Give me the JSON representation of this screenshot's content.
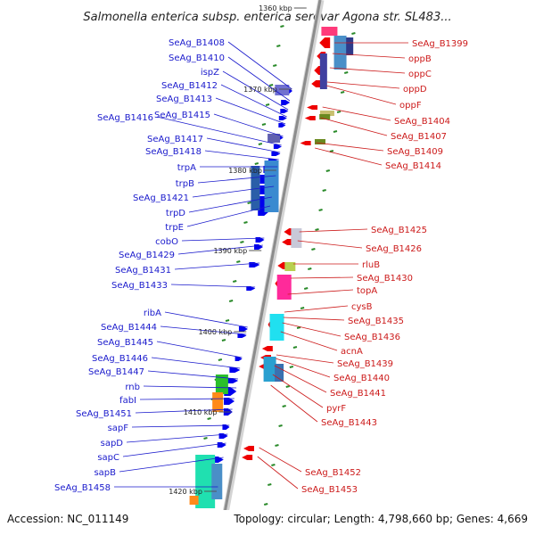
{
  "title": "Salmonella enterica subsp. enterica serovar Agona str. SL483...",
  "footer": {
    "accession": "Accession: NC_011149",
    "topology": "Topology: circular; Length: 4,798,660 bp; Genes: 4,669"
  },
  "scale_labels": [
    "1360 kbp",
    "1370 kbp",
    "1380 kbp",
    "1390 kbp",
    "1400 kbp",
    "1410 kbp",
    "1420 kbp"
  ],
  "left_genes": [
    "SeAg_B1408",
    "SeAg_B1410",
    "ispZ",
    "SeAg_B1412",
    "SeAg_B1413",
    "SeAg_B1415",
    "SeAg_B1416",
    "SeAg_B1417",
    "SeAg_B1418",
    "trpA",
    "trpB",
    "SeAg_B1421",
    "trpD",
    "trpE",
    "cobO",
    "SeAg_B1429",
    "SeAg_B1431",
    "SeAg_B1433",
    "ribA",
    "SeAg_B1444",
    "SeAg_B1445",
    "SeAg_B1446",
    "SeAg_B1447",
    "rnb",
    "fabI",
    "SeAg_B1451",
    "sapF",
    "sapD",
    "sapC",
    "sapB",
    "SeAg_B1458"
  ],
  "right_genes": [
    "SeAg_B1399",
    "oppB",
    "oppC",
    "oppD",
    "oppF",
    "SeAg_B1404",
    "SeAg_B1407",
    "SeAg_B1409",
    "SeAg_B1414",
    "SeAg_B1425",
    "SeAg_B1426",
    "rluB",
    "SeAg_B1430",
    "topA",
    "cysB",
    "SeAg_B1435",
    "SeAg_B1436",
    "acnA",
    "SeAg_B1439",
    "SeAg_B1440",
    "SeAg_B1441",
    "pyrF",
    "SeAg_B1443",
    "SeAg_B1452",
    "SeAg_B1453"
  ],
  "colors": {
    "left_label": "#1a1acc",
    "right_label": "#cc1a1a",
    "forward_arrow": "#0000ee",
    "reverse_arrow": "#ee0000",
    "backbone": "#8c8c8c",
    "tick": "#2a8a2a"
  }
}
